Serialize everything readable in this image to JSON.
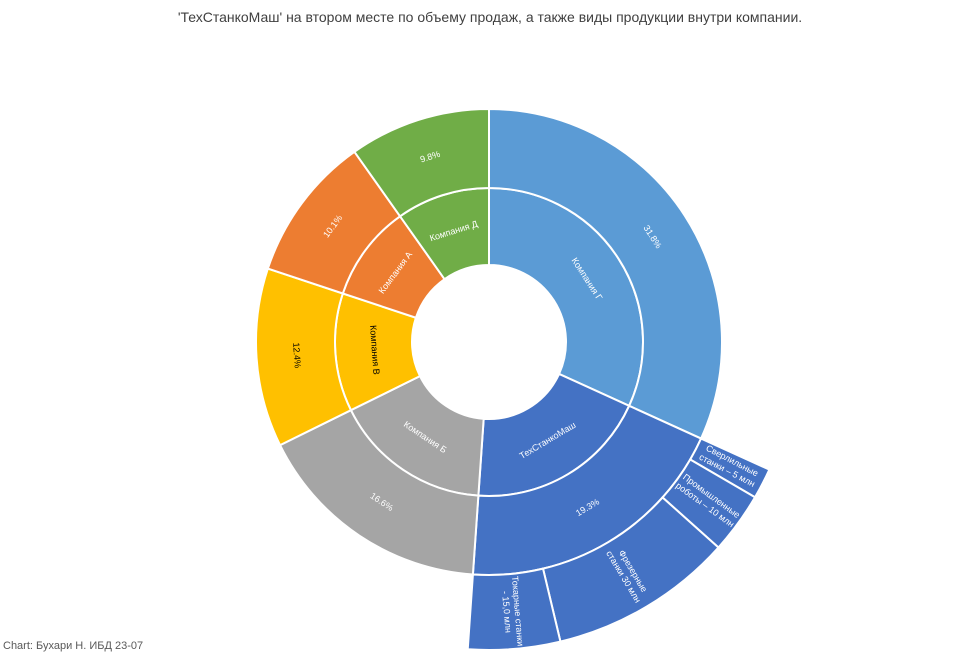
{
  "title": "'ТехСтанкоМаш' на втором месте по объему продаж, а также виды продукции внутри компании.",
  "credit": "Chart: Бухари Н. ИБД 23-07",
  "chart_data": {
    "type": "sunburst",
    "title": "'ТехСтанкоМаш' на втором месте по объему продаж, а также виды продукции внутри компании.",
    "series": [
      {
        "name": "Компания Г",
        "share": 31.8,
        "share_label": "31.8%",
        "color": "#5B9BD5",
        "text_color": "#ffffff",
        "children": []
      },
      {
        "name": "ТехСтанкоМаш",
        "share": 19.3,
        "share_label": "19.3%",
        "color": "#4472C4",
        "text_color": "#ffffff",
        "children": [
          {
            "label_lines": [
              "Сверлильные",
              "станки – 5 млн"
            ],
            "value": 5
          },
          {
            "label_lines": [
              "Промышленные",
              "роботы – 10 млн"
            ],
            "value": 10
          },
          {
            "label_lines": [
              "Фрезерные",
              "станки 30 млн"
            ],
            "value": 30
          },
          {
            "label_lines": [
              "Токарные станки",
              "- 15,0 млн"
            ],
            "value": 15
          }
        ]
      },
      {
        "name": "Компания Б",
        "share": 16.6,
        "share_label": "16.6%",
        "color": "#A5A5A5",
        "text_color": "#ffffff",
        "children": []
      },
      {
        "name": "Компания В",
        "share": 12.4,
        "share_label": "12.4%",
        "color": "#FFC000",
        "text_color": "#000000",
        "children": []
      },
      {
        "name": "Компания А",
        "share": 10.1,
        "share_label": "10.1%",
        "color": "#ED7D31",
        "text_color": "#ffffff",
        "children": []
      },
      {
        "name": "Компания Д",
        "share": 9.8,
        "share_label": "9.8%",
        "color": "#70AD47",
        "text_color": "#ffffff",
        "children": []
      }
    ]
  }
}
